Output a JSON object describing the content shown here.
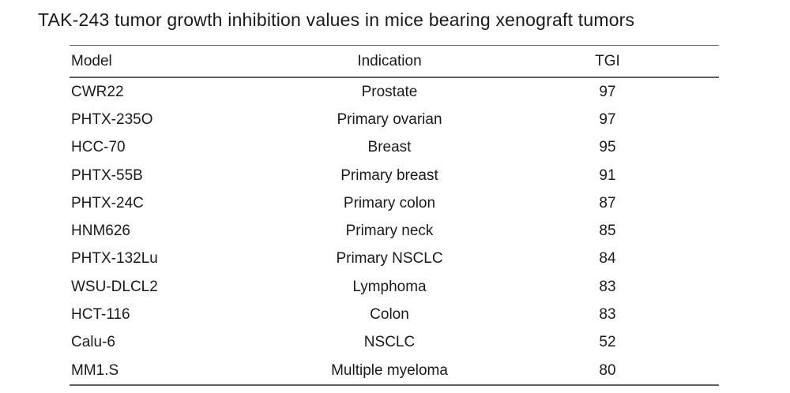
{
  "title": "TAK-243 tumor growth inhibition values in mice bearing xenograft tumors",
  "colors": {
    "background": "#ffffff",
    "text": "#1a1a1a",
    "rule": "#5f5f5f"
  },
  "chart_data": {
    "type": "table",
    "title": "TAK-243 tumor growth inhibition values in mice bearing xenograft tumors",
    "columns": [
      "Model",
      "Indication",
      "TGI"
    ],
    "rows": [
      [
        "CWR22",
        "Prostate",
        97
      ],
      [
        "PHTX-235O",
        "Primary ovarian",
        97
      ],
      [
        "HCC-70",
        "Breast",
        95
      ],
      [
        "PHTX-55B",
        "Primary breast",
        91
      ],
      [
        "PHTX-24C",
        "Primary colon",
        87
      ],
      [
        "HNM626",
        "Primary neck",
        85
      ],
      [
        "PHTX-132Lu",
        "Primary NSCLC",
        84
      ],
      [
        "WSU-DLCL2",
        "Lymphoma",
        83
      ],
      [
        "HCT-116",
        "Colon",
        83
      ],
      [
        "Calu-6",
        "NSCLC",
        52
      ],
      [
        "MM1.S",
        "Multiple myeloma",
        80
      ]
    ]
  }
}
